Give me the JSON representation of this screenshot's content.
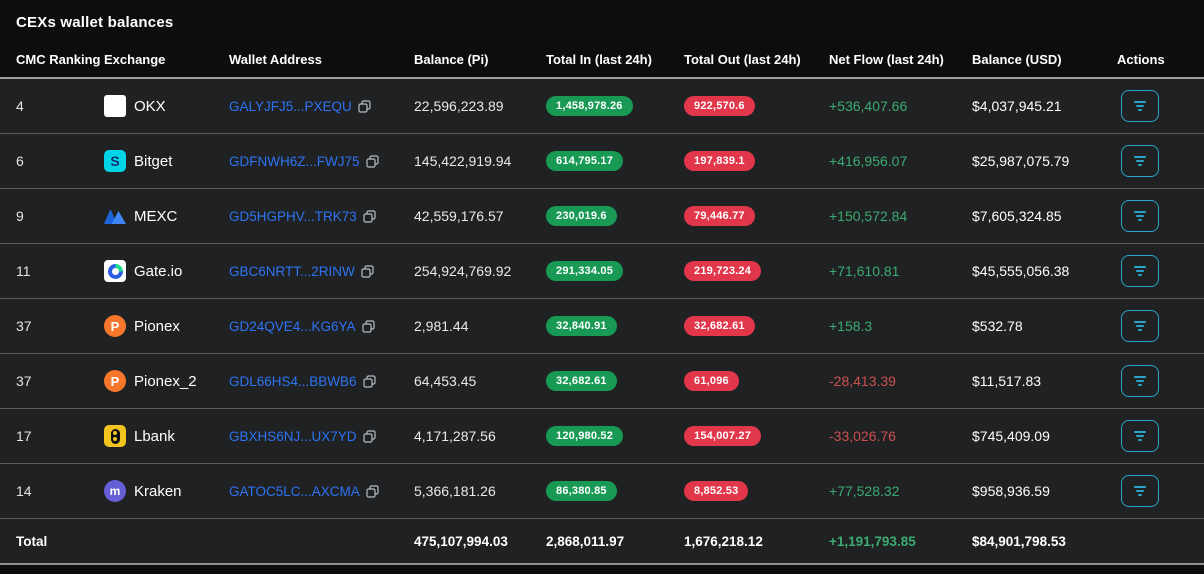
{
  "title": "CEXs wallet balances",
  "colors": {
    "positive_text": "#3cab72",
    "negative_text": "#cd5050",
    "total_in_badge": "#189a55",
    "total_out_badge": "#e2374b",
    "address_link": "#2d74f4",
    "action_accent": "#2aa4c8"
  },
  "icons": {
    "copy": "copy-icon",
    "action": "filter-icon"
  },
  "table": {
    "headers": [
      "CMC Ranking",
      "Exchange",
      "Wallet Address",
      "Balance (Pi)",
      "Total In (last 24h)",
      "Total Out (last 24h)",
      "Net Flow (last 24h)",
      "Balance (USD)",
      "Actions"
    ],
    "rows": [
      {
        "rank": "4",
        "exchange": "OKX",
        "logo": "okx",
        "address": "GALYJFJ5...PXEQU",
        "balance_pi": "22,596,223.89",
        "total_in": "1,458,978.26",
        "total_out": "922,570.6",
        "net_flow": "+536,407.66",
        "balance_usd": "$4,037,945.21"
      },
      {
        "rank": "6",
        "exchange": "Bitget",
        "logo": "bitget",
        "address": "GDFNWH6Z...FWJ75",
        "balance_pi": "145,422,919.94",
        "total_in": "614,795.17",
        "total_out": "197,839.1",
        "net_flow": "+416,956.07",
        "balance_usd": "$25,987,075.79"
      },
      {
        "rank": "9",
        "exchange": "MEXC",
        "logo": "mexc",
        "address": "GD5HGPHV...TRK73",
        "balance_pi": "42,559,176.57",
        "total_in": "230,019.6",
        "total_out": "79,446.77",
        "net_flow": "+150,572.84",
        "balance_usd": "$7,605,324.85"
      },
      {
        "rank": "11",
        "exchange": "Gate.io",
        "logo": "gate",
        "address": "GBC6NRTT...2RINW",
        "balance_pi": "254,924,769.92",
        "total_in": "291,334.05",
        "total_out": "219,723.24",
        "net_flow": "+71,610.81",
        "balance_usd": "$45,555,056.38"
      },
      {
        "rank": "37",
        "exchange": "Pionex",
        "logo": "pionex",
        "address": "GD24QVE4...KG6YA",
        "balance_pi": "2,981.44",
        "total_in": "32,840.91",
        "total_out": "32,682.61",
        "net_flow": "+158.3",
        "balance_usd": "$532.78"
      },
      {
        "rank": "37",
        "exchange": "Pionex_2",
        "logo": "pionex",
        "address": "GDL66HS4...BBWB6",
        "balance_pi": "64,453.45",
        "total_in": "32,682.61",
        "total_out": "61,096",
        "net_flow": "-28,413.39",
        "balance_usd": "$11,517.83"
      },
      {
        "rank": "17",
        "exchange": "Lbank",
        "logo": "lbank",
        "address": "GBXHS6NJ...UX7YD",
        "balance_pi": "4,171,287.56",
        "total_in": "120,980.52",
        "total_out": "154,007.27",
        "net_flow": "-33,026.76",
        "balance_usd": "$745,409.09"
      },
      {
        "rank": "14",
        "exchange": "Kraken",
        "logo": "kraken",
        "address": "GATOC5LC...AXCMA",
        "balance_pi": "5,366,181.26",
        "total_in": "86,380.85",
        "total_out": "8,852.53",
        "net_flow": "+77,528.32",
        "balance_usd": "$958,936.59"
      }
    ],
    "total": {
      "label": "Total",
      "balance_pi": "475,107,994.03",
      "total_in": "2,868,011.97",
      "total_out": "1,676,218.12",
      "net_flow": "+1,191,793.85",
      "balance_usd": "$84,901,798.53"
    }
  }
}
